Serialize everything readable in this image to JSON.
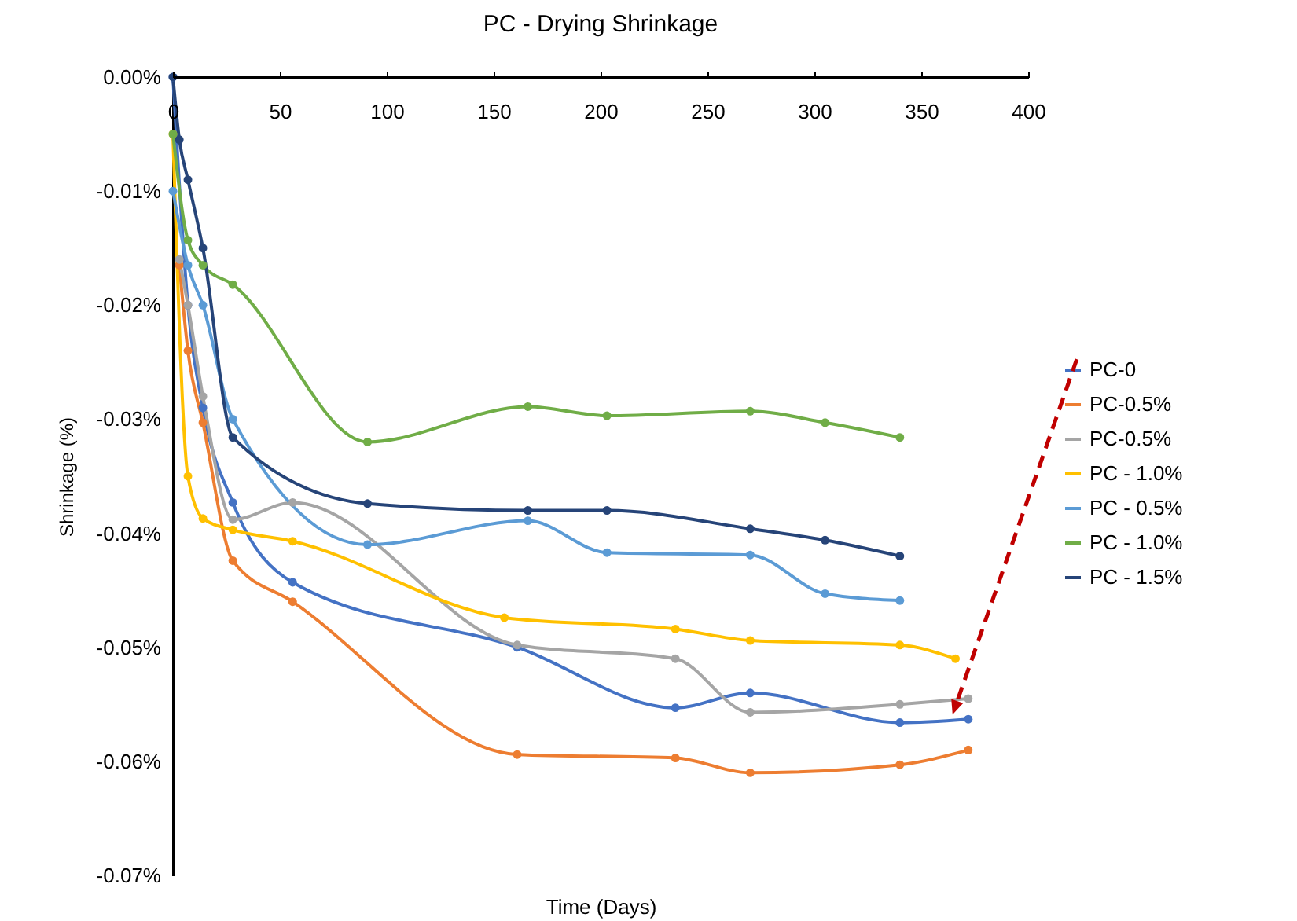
{
  "chart_data": {
    "type": "line",
    "title": "PC - Drying Shrinkage",
    "xlabel": "Time (Days)",
    "ylabel": "Shrinkage (%)",
    "xlim": [
      0,
      400
    ],
    "xticks": [
      0,
      50,
      100,
      150,
      200,
      250,
      300,
      350,
      400
    ],
    "ylim": [
      -0.07,
      0
    ],
    "yticks": [
      {
        "value": -0.07,
        "label": "-0.07%"
      },
      {
        "value": -0.06,
        "label": "-0.06%"
      },
      {
        "value": -0.05,
        "label": "-0.05%"
      },
      {
        "value": -0.04,
        "label": "-0.04%"
      },
      {
        "value": -0.03,
        "label": "-0.03%"
      },
      {
        "value": -0.02,
        "label": "-0.02%"
      },
      {
        "value": -0.01,
        "label": "-0.01%"
      },
      {
        "value": 0,
        "label": "0.00%"
      }
    ],
    "grid": false,
    "legend": "right",
    "marker": "circle",
    "line_style": "solid",
    "series": [
      {
        "name": "PC-0",
        "color": "#4472c4",
        "x": [
          0,
          7,
          14,
          28,
          56,
          161,
          235,
          270,
          340,
          372
        ],
        "values": [
          0,
          -0.02,
          -0.029,
          -0.0373,
          -0.0443,
          -0.05,
          -0.0553,
          -0.054,
          -0.0566,
          -0.0563
        ]
      },
      {
        "name": "PC-0.5%",
        "color": "#ed7d31",
        "x": [
          3,
          7,
          14,
          28,
          56,
          161,
          235,
          270,
          340,
          372
        ],
        "values": [
          -0.0165,
          -0.024,
          -0.0303,
          -0.0424,
          -0.046,
          -0.0594,
          -0.0597,
          -0.061,
          -0.0603,
          -0.059
        ]
      },
      {
        "name": "PC-0.5%",
        "color": "#a5a5a5",
        "x": [
          3,
          7,
          14,
          28,
          56,
          161,
          235,
          270,
          340,
          372
        ],
        "values": [
          -0.016,
          -0.02,
          -0.028,
          -0.0388,
          -0.0373,
          -0.0498,
          -0.051,
          -0.0557,
          -0.055,
          -0.0545
        ]
      },
      {
        "name": "PC - 1.0%",
        "color": "#ffc000",
        "x": [
          0,
          7,
          14,
          28,
          56,
          155,
          235,
          270,
          340,
          366
        ],
        "values": [
          -0.005,
          -0.035,
          -0.0387,
          -0.0397,
          -0.0407,
          -0.0474,
          -0.0484,
          -0.0494,
          -0.0498,
          -0.051
        ]
      },
      {
        "name": "PC - 0.5%",
        "color": "#5b9bd5",
        "x": [
          0,
          7,
          14,
          28,
          91,
          166,
          203,
          270,
          305,
          340
        ],
        "values": [
          -0.01,
          -0.0165,
          -0.02,
          -0.03,
          -0.041,
          -0.0389,
          -0.0417,
          -0.0419,
          -0.0453,
          -0.0459
        ]
      },
      {
        "name": "PC - 1.0%",
        "color": "#70ad47",
        "x": [
          0,
          7,
          14,
          28,
          91,
          166,
          203,
          270,
          305,
          340
        ],
        "values": [
          -0.005,
          -0.0143,
          -0.0165,
          -0.0182,
          -0.032,
          -0.0289,
          -0.0297,
          -0.0293,
          -0.0303,
          -0.0316
        ]
      },
      {
        "name": "PC - 1.5%",
        "color": "#264478",
        "x": [
          0,
          3,
          7,
          14,
          28,
          91,
          166,
          203,
          270,
          305,
          340
        ],
        "values": [
          0,
          -0.0055,
          -0.009,
          -0.015,
          -0.0316,
          -0.0374,
          -0.038,
          -0.038,
          -0.0396,
          -0.0406,
          -0.042
        ]
      }
    ]
  }
}
